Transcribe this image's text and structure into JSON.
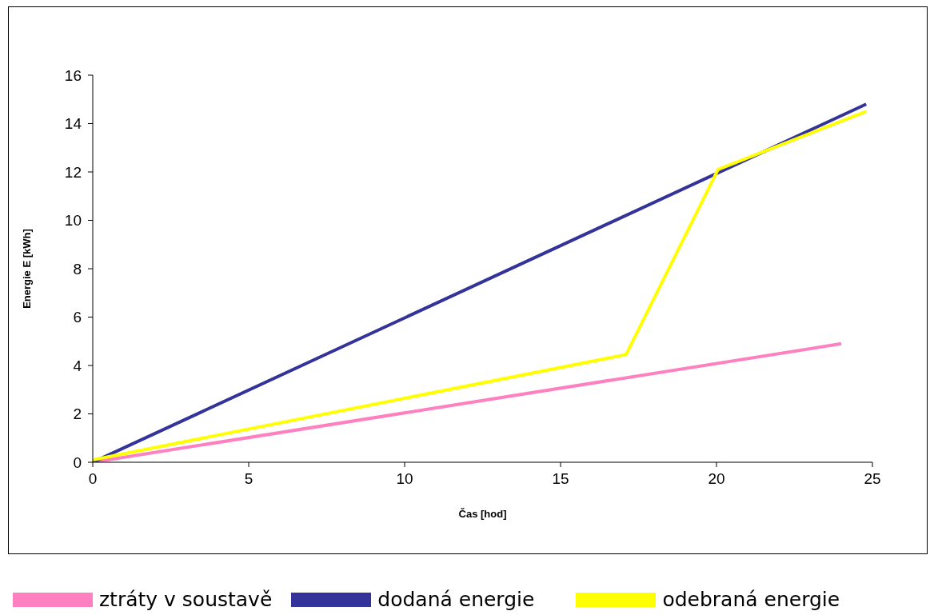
{
  "chart_data": {
    "type": "line",
    "xlabel": "Čas [hod]",
    "ylabel": "Energie E [kWh]",
    "xlim": [
      0,
      25
    ],
    "xticks": [
      0,
      5,
      10,
      15,
      20,
      25
    ],
    "ylim": [
      0,
      16
    ],
    "yticks": [
      0,
      2,
      4,
      6,
      8,
      10,
      12,
      14,
      16
    ],
    "grid": false,
    "legend": "bottom",
    "marker": "none",
    "line_style": "solid",
    "series": [
      {
        "name": "ztráty v soustavě",
        "color": "#ff80c0",
        "x": [
          0,
          24
        ],
        "values": [
          0,
          4.9
        ]
      },
      {
        "name": "dodaná energie",
        "color": "#333399",
        "x": [
          0,
          24.8
        ],
        "values": [
          0,
          14.8
        ]
      },
      {
        "name": "odebraná energie",
        "color": "#ffff00",
        "x": [
          0,
          17.1,
          20.05,
          24.8
        ],
        "values": [
          0.1,
          4.45,
          12.1,
          14.5
        ]
      }
    ]
  }
}
